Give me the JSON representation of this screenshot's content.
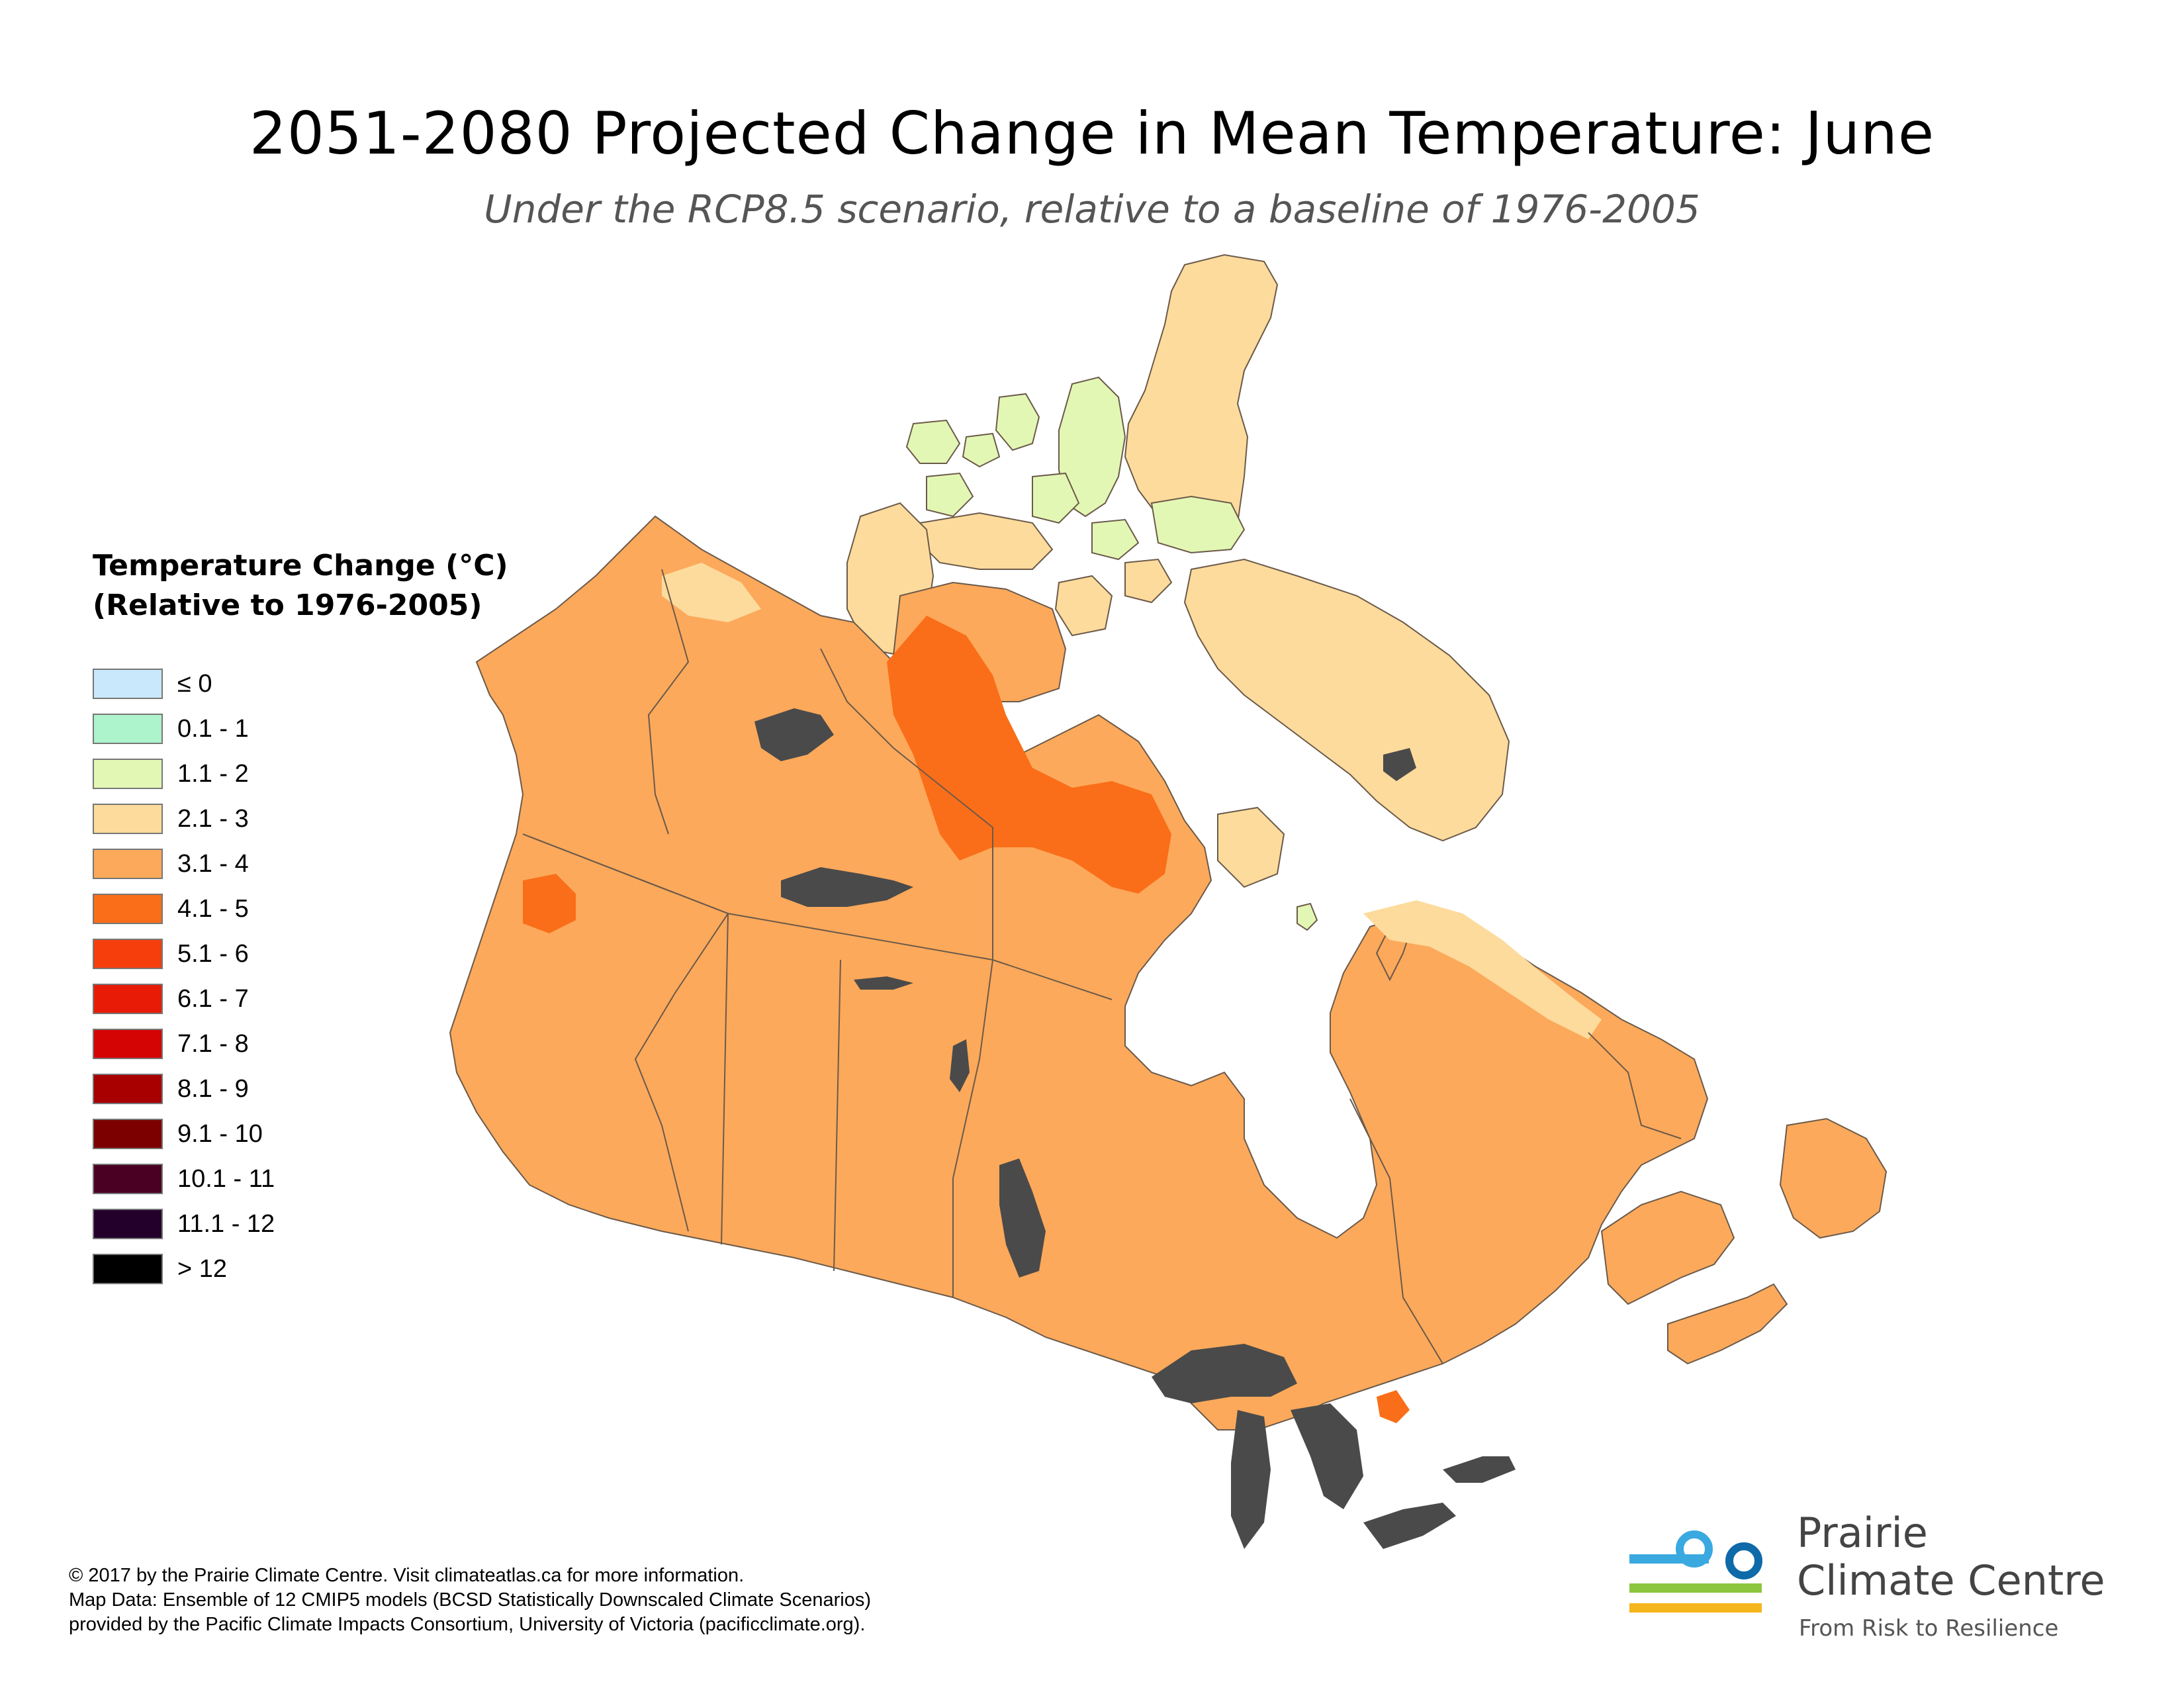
{
  "title": "2051-2080 Projected Change in Mean Temperature: June",
  "subtitle": "Under the RCP8.5 scenario, relative to a baseline of 1976-2005",
  "legend": {
    "title_line1": "Temperature Change (°C)",
    "title_line2": "(Relative to 1976-2005)",
    "items": [
      {
        "label": "≤ 0",
        "color": "#c9e8fb"
      },
      {
        "label": "0.1 - 1",
        "color": "#adf3cc"
      },
      {
        "label": "1.1 - 2",
        "color": "#e3f7b4"
      },
      {
        "label": "2.1 - 3",
        "color": "#fddb9c"
      },
      {
        "label": "3.1 - 4",
        "color": "#fca95b"
      },
      {
        "label": "4.1 - 5",
        "color": "#fa6e19"
      },
      {
        "label": "5.1 - 6",
        "color": "#f53e0c"
      },
      {
        "label": "6.1 - 7",
        "color": "#e81c06"
      },
      {
        "label": "7.1 - 8",
        "color": "#d40404"
      },
      {
        "label": "8.1 - 9",
        "color": "#a80000"
      },
      {
        "label": "9.1 - 10",
        "color": "#7d0000"
      },
      {
        "label": "10.1 - 11",
        "color": "#4a0022"
      },
      {
        "label": "11.1 - 12",
        "color": "#23002b"
      },
      {
        "label": "> 12",
        "color": "#000000"
      }
    ]
  },
  "map": {
    "colors": {
      "land_base": "#fca95b",
      "warm_zone": "#fa6e19",
      "cool_zone": "#fddb9c",
      "coolest_zone": "#e3f7b4",
      "water": "#4a4a4a",
      "border": "#6b5a4a"
    }
  },
  "credits": {
    "line1": "© 2017 by the Prairie Climate Centre. Visit climateatlas.ca for more information.",
    "line2": "Map Data: Ensemble of 12 CMIP5 models (BCSD Statistically Downscaled Climate Scenarios)",
    "line3": "provided by the Pacific Climate Impacts Consortium, University of Victoria (pacificclimate.org)."
  },
  "logo": {
    "name_line1": "Prairie",
    "name_line2": "Climate Centre",
    "tagline": "From Risk to Resilience",
    "colors": {
      "blue": "#3aa9e0",
      "navy": "#0e6aa8",
      "green": "#8cc63f",
      "yellow": "#f5b51c"
    }
  }
}
